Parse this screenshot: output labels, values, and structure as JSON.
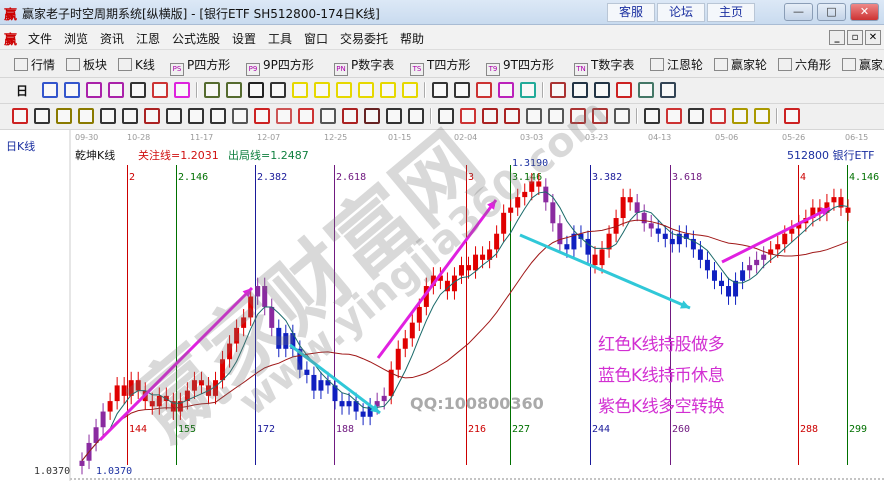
{
  "window": {
    "title": "赢家老子时空周期系统[纵横版] - [银行ETF  SH512800-174日K线]",
    "logo": "赢",
    "links": [
      "客服",
      "论坛",
      "主页"
    ],
    "controls": [
      "—",
      "□",
      "✕"
    ]
  },
  "menu": {
    "logo": "赢",
    "items": [
      "文件",
      "浏览",
      "资讯",
      "江恩",
      "公式选股",
      "设置",
      "工具",
      "窗口",
      "交易委托",
      "帮助"
    ],
    "mdi": [
      "_",
      "▫",
      "✕"
    ]
  },
  "toolbar1": [
    {
      "label": "行情",
      "icon": "grid-icon"
    },
    {
      "label": "板块",
      "icon": "blocks-icon"
    },
    {
      "label": "K线",
      "icon": "kline-icon"
    },
    {
      "label": "P四方形",
      "icon": "PS"
    },
    {
      "label": "9P四方形",
      "icon": "P9"
    },
    {
      "label": "P数字表",
      "icon": "PN"
    },
    {
      "label": "T四方形",
      "icon": "TS"
    },
    {
      "label": "9T四方形",
      "icon": "T9"
    },
    {
      "label": "T数字表",
      "icon": "TN"
    },
    {
      "label": "江恩轮",
      "icon": "target-icon"
    },
    {
      "label": "赢家轮",
      "icon": "big-icon"
    },
    {
      "label": "六角形",
      "icon": "hexagon-icon"
    },
    {
      "label": "赢家服务",
      "icon": "dollar-icon"
    }
  ],
  "toolbar2": {
    "period": "日",
    "icons": [
      "#3355cc",
      "#3355cc",
      "#aa22aa",
      "#aa22aa",
      "#333",
      "#c33",
      "#d2d",
      "sep",
      "#556b2f",
      "#556b2f",
      "#222",
      "#333",
      "#e6d800",
      "#e6d800",
      "#e6d800",
      "#e6d800",
      "#e6d800",
      "#e6d800",
      "sep",
      "#333",
      "#333",
      "#c33",
      "#b2b",
      "#2a9",
      "sep",
      "#a33",
      "#234",
      "#234",
      "#c22",
      "#476",
      "#345"
    ]
  },
  "toolbar3": {
    "icons": [
      "#c22",
      "#333",
      "#8a7a00",
      "#8a7a00",
      "#333",
      "#333",
      "#a22",
      "#333",
      "#333",
      "#333",
      "#555",
      "#c22",
      "#c55",
      "#c33",
      "#555",
      "#a22",
      "#622",
      "#333",
      "#333",
      "sep",
      "#333",
      "#c33",
      "#a22",
      "#a22",
      "#555",
      "#555",
      "#a33",
      "#a33",
      "#555",
      "sep",
      "#333",
      "#c33",
      "#333",
      "#c33",
      "#a90",
      "#a90",
      "sep",
      "#c22"
    ]
  },
  "chart": {
    "period_label": "日K线",
    "dates": [
      "09-30",
      "10-28",
      "11-17",
      "12-07",
      "12-25",
      "01-15",
      "02-04",
      "03-03",
      "03-23",
      "04-13",
      "05-06",
      "05-26",
      "06-15"
    ],
    "indicator_name": "乾坤K线",
    "focus_line": "关注线=1.2031",
    "exit_line": "出局线=1.2487",
    "code_name": "512800  银行ETF",
    "high_label": "1.3190",
    "low_label": "1.0370",
    "low_label2": "1.0370",
    "cycle_lines": [
      {
        "top": "2",
        "bottom": "144",
        "color": "#cc0000"
      },
      {
        "top": "2.146",
        "bottom": "155",
        "color": "#007000"
      },
      {
        "top": "2.382",
        "bottom": "172",
        "color": "#1a1a9a"
      },
      {
        "top": "2.618",
        "bottom": "188",
        "color": "#701a80"
      },
      {
        "top": "3",
        "bottom": "216",
        "color": "#cc0000"
      },
      {
        "top": "3.146",
        "bottom": "227",
        "color": "#007000"
      },
      {
        "top": "3.382",
        "bottom": "244",
        "color": "#1a1a9a"
      },
      {
        "top": "3.618",
        "bottom": "260",
        "color": "#701a80"
      },
      {
        "top": "4",
        "bottom": "288",
        "color": "#cc0000"
      },
      {
        "top": "4.146",
        "bottom": "299",
        "color": "#007000"
      }
    ],
    "notes": [
      "红色K线持股做多",
      "蓝色K线持币休息",
      "紫色K线多空转换"
    ],
    "qq": "QQ:100800360",
    "watermark": [
      "赢家财富网",
      "www.yingjia360.com"
    ]
  },
  "chart_data": {
    "type": "candlestick",
    "ylim": [
      1.037,
      1.319
    ],
    "colors": {
      "r": "#e00000",
      "b": "#1020c0",
      "p": "#8a2aa0"
    },
    "closes": [
      1.043,
      1.06,
      1.075,
      1.09,
      1.1,
      1.115,
      1.105,
      1.12,
      1.11,
      1.1,
      1.095,
      1.105,
      1.1,
      1.09,
      1.1,
      1.11,
      1.12,
      1.115,
      1.105,
      1.12,
      1.14,
      1.155,
      1.17,
      1.18,
      1.2,
      1.21,
      1.19,
      1.17,
      1.15,
      1.165,
      1.15,
      1.13,
      1.125,
      1.11,
      1.12,
      1.115,
      1.1,
      1.095,
      1.1,
      1.09,
      1.085,
      1.095,
      1.1,
      1.105,
      1.13,
      1.15,
      1.16,
      1.175,
      1.19,
      1.21,
      1.22,
      1.215,
      1.205,
      1.22,
      1.23,
      1.225,
      1.24,
      1.235,
      1.245,
      1.26,
      1.28,
      1.285,
      1.295,
      1.3,
      1.31,
      1.305,
      1.29,
      1.27,
      1.25,
      1.245,
      1.26,
      1.255,
      1.24,
      1.23,
      1.245,
      1.26,
      1.275,
      1.295,
      1.29,
      1.28,
      1.27,
      1.265,
      1.26,
      1.255,
      1.25,
      1.26,
      1.255,
      1.245,
      1.235,
      1.225,
      1.215,
      1.21,
      1.2,
      1.215,
      1.225,
      1.23,
      1.235,
      1.24,
      1.245,
      1.25,
      1.26,
      1.265,
      1.27,
      1.275,
      1.285,
      1.28,
      1.29,
      1.295,
      1.285,
      1.28
    ],
    "states": "pppprrrrrrrrrrrrrrrrrrrrrpppbbbbbbbbbbbbbbpprrrrrrrrrrrrrrrrrrrrrrpppbbbbrrrrrrpppbbbbbbbbbbbbbppprrrrrrrrrrrr"
  }
}
